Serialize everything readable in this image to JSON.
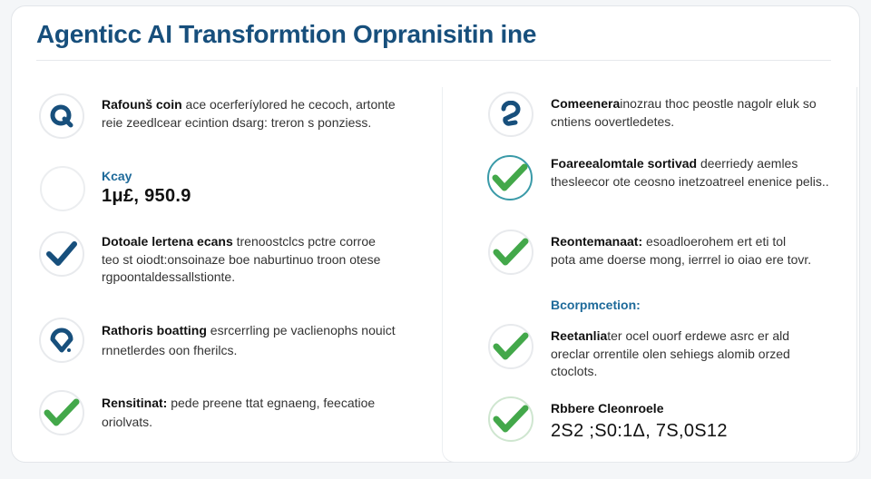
{
  "title": "Agenticc AI Transformtion Orpranisitin ine",
  "colors": {
    "primary": "#174f7c",
    "check_green": "#43a84a",
    "teal": "#3a9aa8"
  },
  "left": {
    "items": [
      {
        "icon": "q-icon",
        "bold": "Rafounš coin",
        "text": " ace ocerferíylored he cecoch, artonte reie zeedlcear ecintion dsarg: treron s ponziess."
      },
      {
        "icon": "empty-circle-icon",
        "label": "Kcay",
        "value": "1μ£, 950.9"
      },
      {
        "icon": "check-icon",
        "bold": "Dotoale lertena ecans",
        "text": " trenoostclcs pctre corroe teo st oiodt:onsoinaze boe naburtinuo troon otese rgpoontaldessallstionte."
      },
      {
        "icon": "location-pin-icon",
        "bold": "Rathoris boatting",
        "text": " esrcerrling pe vaclienophs nouict rnnetlerdes oon fherilcs."
      },
      {
        "icon": "check-icon",
        "bold": "Rensitinat:",
        "text": " pede preene ttat egnaeng, feecatioe oriolvats."
      }
    ]
  },
  "right": {
    "items": [
      {
        "icon": "question-icon",
        "bold": "Comeenera",
        "text": "inozrau thoc peostle nagolr eluk so cntiens oovertledetes."
      },
      {
        "icon": "check-circle-icon",
        "bold": "Foareealomtale sortivad",
        "text": " deerriedy aemles thesleecor ote ceosno inetzoatreel enenice pelis.."
      },
      {
        "icon": "check-icon",
        "bold": "Reontemanaat:",
        "text": " esoadloerohem ert eti tol pota ame doerse mong, ierrrel io oiao ere tovr."
      }
    ],
    "section_label": "Bcorpmcetion:",
    "items2": [
      {
        "icon": "check-icon",
        "bold": "Reetanlia",
        "text": "ter ocel ouorf erdewe asrc er ald oreclar orrentile olen sehiegs alomib orzed ctoclots."
      },
      {
        "icon": "check-icon",
        "label": "Rbbere Cleonroele",
        "value": "2S2 ;S0:1Δ, 7S,0S12"
      }
    ]
  }
}
